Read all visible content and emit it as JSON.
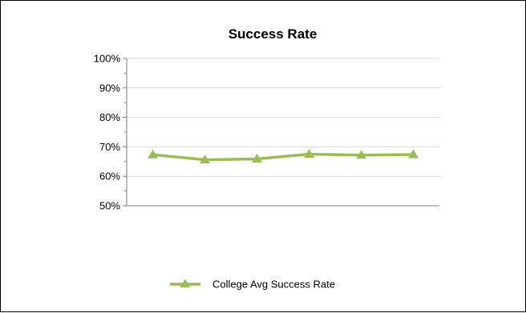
{
  "chart_data": {
    "type": "line",
    "title": "Success Rate",
    "xlabel": "",
    "ylabel": "",
    "ylim": [
      0.5,
      1.0
    ],
    "y_ticks": [
      "100%",
      "90%",
      "80%",
      "70%",
      "60%",
      "50%"
    ],
    "y_tick_values": [
      1.0,
      0.9,
      0.8,
      0.7,
      0.6,
      0.5
    ],
    "grid": true,
    "legend_position": "bottom",
    "series": [
      {
        "name": "College Avg Success Rate",
        "color": "#9BBB59",
        "marker": "triangle",
        "values": [
          0.673,
          0.656,
          0.659,
          0.675,
          0.672,
          0.674
        ]
      }
    ]
  },
  "colors": {
    "frame": "#000000",
    "gridline": "#D9D9D9",
    "axis": "#7F7F7F"
  }
}
